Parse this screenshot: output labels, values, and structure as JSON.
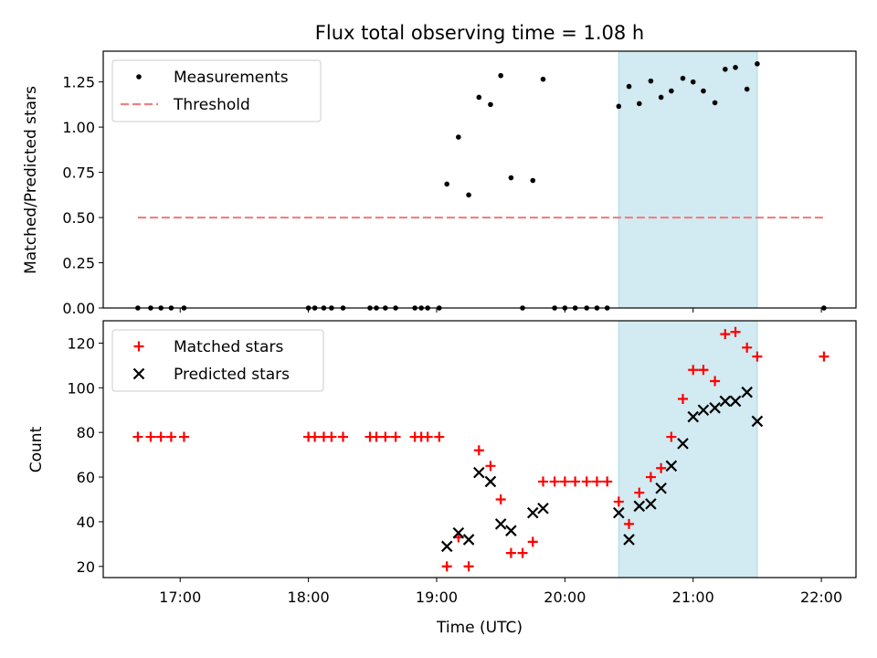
{
  "chart_data": [
    {
      "type": "scatter",
      "title": "Flux total observing time = 1.08 h",
      "xlabel": "",
      "ylabel": "Matched/Predicted stars",
      "ylim": [
        0,
        1.42
      ],
      "yticks": [
        "0.00",
        "0.25",
        "0.50",
        "0.75",
        "1.00",
        "1.25"
      ],
      "highlight_span": [
        20.42,
        21.5
      ],
      "highlight_color": "#add8e6",
      "legend": {
        "placement": "upper-left",
        "entries": [
          "Measurements",
          "Threshold"
        ]
      },
      "series": [
        {
          "name": "Measurements",
          "marker": "dot",
          "color": "#000000",
          "x": [
            16.67,
            16.77,
            16.85,
            16.93,
            17.03,
            18.0,
            18.05,
            18.12,
            18.18,
            18.27,
            18.48,
            18.53,
            18.6,
            18.68,
            18.83,
            18.88,
            18.93,
            19.02,
            19.08,
            19.17,
            19.25,
            19.33,
            19.42,
            19.5,
            19.58,
            19.67,
            19.75,
            19.83,
            19.92,
            20.0,
            20.08,
            20.17,
            20.25,
            20.33,
            20.42,
            20.5,
            20.58,
            20.67,
            20.75,
            20.83,
            20.92,
            21.0,
            21.08,
            21.17,
            21.25,
            21.33,
            21.42,
            21.5,
            22.02
          ],
          "y": [
            0,
            0,
            0,
            0,
            0,
            0,
            0,
            0,
            0,
            0,
            0,
            0,
            0,
            0,
            0,
            0,
            0,
            0,
            0.685,
            0.945,
            0.625,
            1.165,
            1.125,
            1.285,
            0.72,
            0,
            0.705,
            1.265,
            0,
            0,
            0,
            0,
            0,
            0,
            1.115,
            1.225,
            1.13,
            1.255,
            1.165,
            1.2,
            1.27,
            1.25,
            1.2,
            1.135,
            1.32,
            1.33,
            1.21,
            1.35,
            0
          ]
        },
        {
          "name": "Threshold",
          "marker": "dashed-line",
          "color": "#f08080",
          "x": [
            16.67,
            22.02
          ],
          "y": [
            0.5,
            0.5
          ]
        }
      ]
    },
    {
      "type": "scatter",
      "xlabel": "Time (UTC)",
      "ylabel": "Count",
      "xlim": [
        16.4,
        22.27
      ],
      "ylim": [
        15,
        130
      ],
      "yticks": [
        "20",
        "40",
        "60",
        "80",
        "100",
        "120"
      ],
      "xticks": [
        {
          "value": 17,
          "label": "17:00"
        },
        {
          "value": 18,
          "label": "18:00"
        },
        {
          "value": 19,
          "label": "19:00"
        },
        {
          "value": 20,
          "label": "20:00"
        },
        {
          "value": 21,
          "label": "21:00"
        },
        {
          "value": 22,
          "label": "22:00"
        }
      ],
      "highlight_span": [
        20.42,
        21.5
      ],
      "highlight_color": "#add8e6",
      "legend": {
        "placement": "upper-left",
        "entries": [
          "Matched stars",
          "Predicted stars"
        ]
      },
      "series": [
        {
          "name": "Matched stars",
          "marker": "plus",
          "color": "#ff0000",
          "x": [
            16.67,
            16.77,
            16.85,
            16.93,
            17.03,
            18.0,
            18.05,
            18.12,
            18.18,
            18.27,
            18.48,
            18.53,
            18.6,
            18.68,
            18.83,
            18.88,
            18.93,
            19.02,
            19.08,
            19.17,
            19.25,
            19.33,
            19.42,
            19.5,
            19.58,
            19.67,
            19.75,
            19.83,
            19.92,
            20.0,
            20.08,
            20.17,
            20.25,
            20.33,
            20.42,
            20.5,
            20.58,
            20.67,
            20.75,
            20.83,
            20.92,
            21.0,
            21.08,
            21.17,
            21.25,
            21.33,
            21.42,
            21.5,
            22.02
          ],
          "y": [
            78,
            78,
            78,
            78,
            78,
            78,
            78,
            78,
            78,
            78,
            78,
            78,
            78,
            78,
            78,
            78,
            78,
            78,
            20,
            33,
            20,
            72,
            65,
            50,
            26,
            26,
            31,
            58,
            58,
            58,
            58,
            58,
            58,
            58,
            49,
            39,
            53,
            60,
            64,
            78,
            95,
            108,
            108,
            103,
            124,
            125,
            118,
            114,
            114
          ]
        },
        {
          "name": "Predicted stars",
          "marker": "x",
          "color": "#000000",
          "x": [
            19.08,
            19.17,
            19.25,
            19.33,
            19.42,
            19.5,
            19.58,
            19.75,
            19.83,
            20.42,
            20.5,
            20.58,
            20.67,
            20.75,
            20.83,
            20.92,
            21.0,
            21.08,
            21.17,
            21.25,
            21.33,
            21.42,
            21.5
          ],
          "y": [
            29,
            35,
            32,
            62,
            58,
            39,
            36,
            44,
            46,
            44,
            32,
            47,
            48,
            55,
            65,
            75,
            87,
            90,
            91,
            94,
            94,
            98,
            85
          ]
        }
      ]
    }
  ]
}
